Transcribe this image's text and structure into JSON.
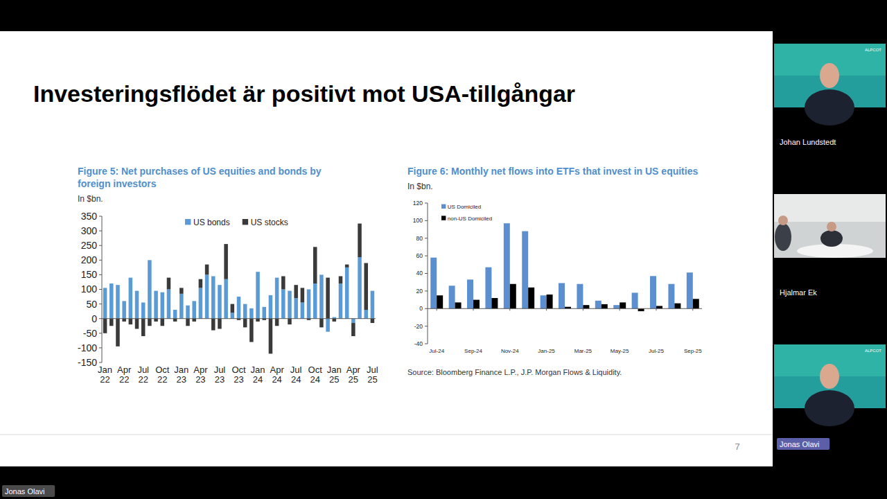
{
  "slide": {
    "title": "Investeringsflödet är positivt mot USA-tillgångar",
    "page_number": "7"
  },
  "participants": [
    {
      "name": "Johan Lundstedt",
      "logo": "ALPCOT"
    },
    {
      "name": "Hjalmar Ek"
    },
    {
      "name": "Jonas Olavi",
      "logo": "ALPCOT"
    }
  ],
  "speaker": "Jonas Olavi",
  "chart_data": [
    {
      "type": "bar",
      "stacked": true,
      "title": "Figure 5: Net purchases of US equities and bonds by foreign investors",
      "subtitle": "In $bn.",
      "categories": [
        "Jan 22",
        null,
        null,
        "Apr 22",
        null,
        null,
        "Jul 22",
        null,
        null,
        "Oct 22",
        null,
        null,
        "Jan 23",
        null,
        null,
        "Apr 23",
        null,
        null,
        "Jul 23",
        null,
        null,
        "Oct 23",
        null,
        null,
        "Jan 24",
        null,
        null,
        "Apr 24",
        null,
        null,
        "Jul 24",
        null,
        null,
        "Oct 24",
        null,
        null,
        "Jan 25",
        null,
        null,
        "Apr 25",
        null,
        null,
        "Jul 25"
      ],
      "series": [
        {
          "name": "US bonds",
          "color": "#5b9bd5",
          "values": [
            105,
            120,
            115,
            60,
            140,
            95,
            55,
            200,
            95,
            90,
            100,
            30,
            85,
            45,
            60,
            105,
            150,
            145,
            115,
            135,
            20,
            75,
            50,
            35,
            160,
            40,
            80,
            140,
            100,
            95,
            70,
            55,
            100,
            120,
            150,
            -45,
            5,
            120,
            175,
            -15,
            210,
            30,
            95
          ]
        },
        {
          "name": "US stocks",
          "color": "#3a3a3a",
          "values": [
            -50,
            -25,
            -95,
            -10,
            -20,
            -35,
            -60,
            -25,
            -10,
            -25,
            40,
            -10,
            20,
            -25,
            -10,
            30,
            35,
            -40,
            -35,
            120,
            30,
            -5,
            -30,
            -80,
            -10,
            -5,
            -120,
            -25,
            45,
            -20,
            45,
            50,
            -5,
            125,
            -30,
            140,
            -10,
            25,
            10,
            -45,
            115,
            160,
            -15
          ]
        }
      ],
      "ylim": [
        -150,
        350
      ],
      "yticks": [
        -150,
        -100,
        -50,
        0,
        50,
        100,
        150,
        200,
        250,
        300,
        350
      ],
      "legend": "top",
      "grid": false
    },
    {
      "type": "bar",
      "stacked": false,
      "title": "Figure 6: Monthly net flows into ETFs that invest in US equities",
      "subtitle": "In $bn.",
      "categories": [
        "Jul-24",
        null,
        "Sep-24",
        null,
        "Nov-24",
        null,
        "Jan-25",
        null,
        "Mar-25",
        null,
        "May-25",
        null,
        "Jul-25",
        null,
        "Sep-25"
      ],
      "series": [
        {
          "name": "US Domiciled",
          "color": "#5b8fd0",
          "values": [
            58,
            26,
            33,
            47,
            97,
            88,
            15,
            29,
            28,
            9,
            4,
            18,
            37,
            28,
            41
          ]
        },
        {
          "name": "non-US Domiciled",
          "color": "#000000",
          "values": [
            15,
            7,
            10,
            12,
            28,
            24,
            16,
            2,
            4,
            5,
            7,
            -3,
            3,
            6,
            11
          ]
        }
      ],
      "ylim": [
        -40,
        120
      ],
      "yticks": [
        -40,
        -20,
        0,
        20,
        40,
        60,
        80,
        100,
        120
      ],
      "legend": "top-left",
      "grid": false,
      "source": "Source: Bloomberg Finance L.P., J.P. Morgan Flows & Liquidity."
    }
  ]
}
